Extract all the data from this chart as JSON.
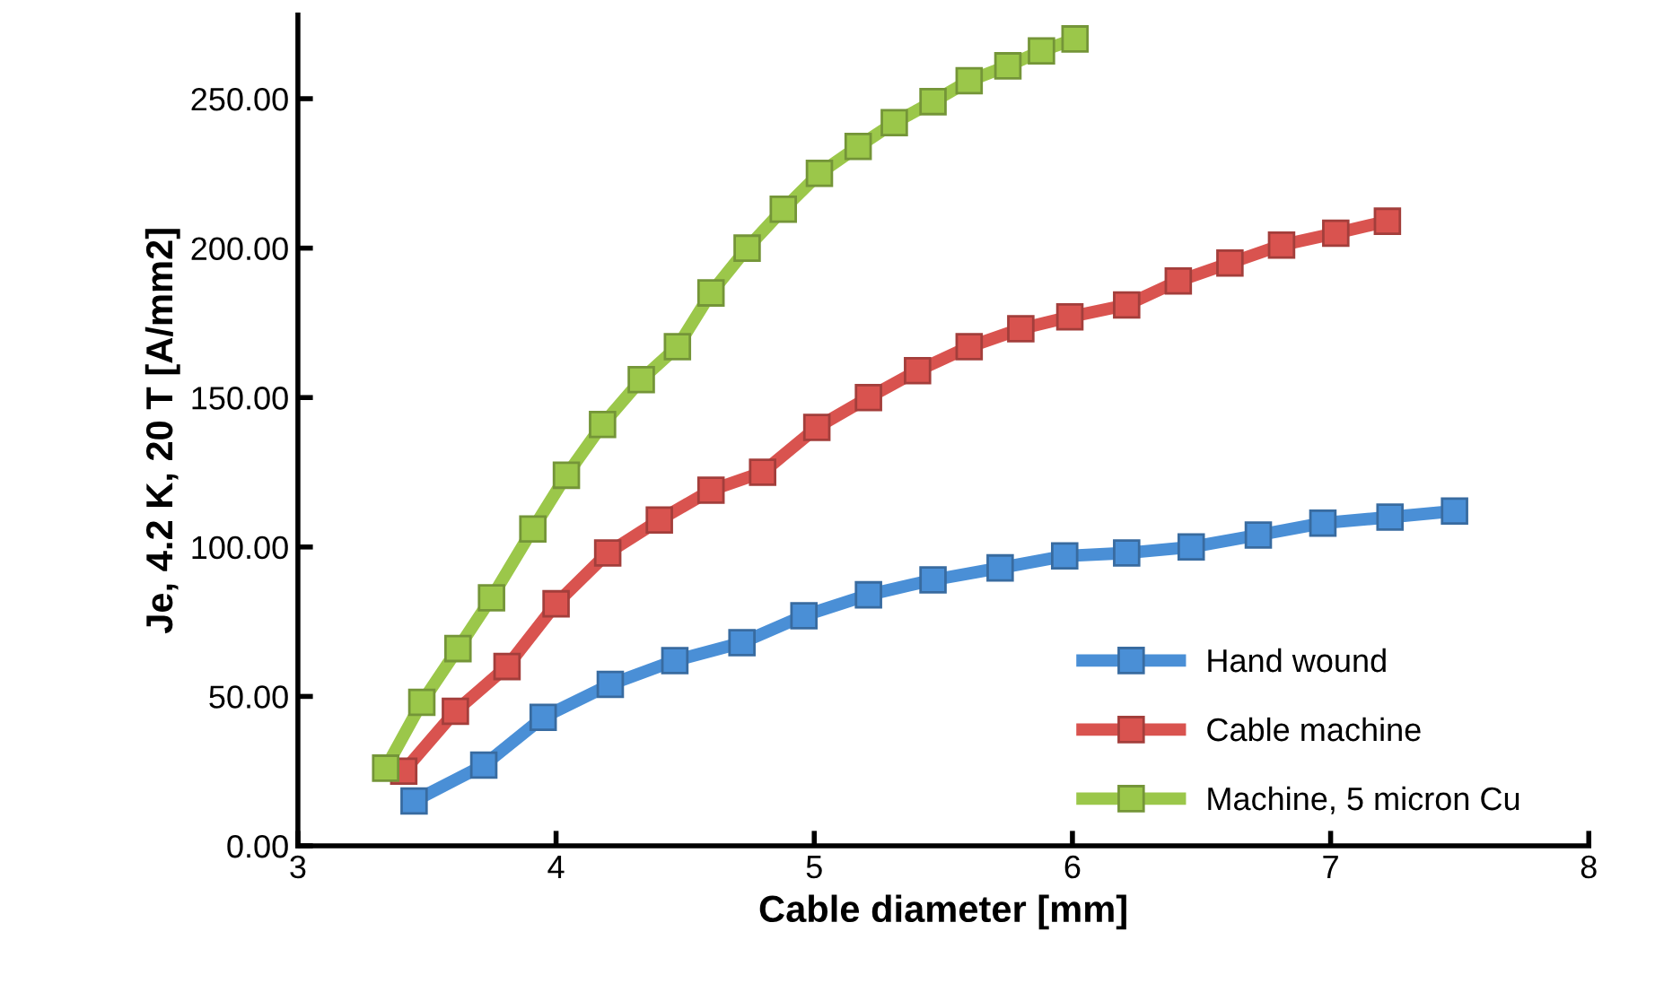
{
  "chart_data": {
    "type": "line",
    "xlabel": "Cable diameter [mm]",
    "ylabel": "Je, 4.2 K, 20 T [A/mm2]",
    "xlim": [
      3,
      8
    ],
    "xticks": [
      3,
      4,
      5,
      6,
      7,
      8
    ],
    "ylim": [
      0,
      278
    ],
    "yticks": [
      {
        "value": 0,
        "label": "0.00"
      },
      {
        "value": 50,
        "label": "50.00"
      },
      {
        "value": 100,
        "label": "100.00"
      },
      {
        "value": 150,
        "label": "150.00"
      },
      {
        "value": 200,
        "label": "200.00"
      },
      {
        "value": 250,
        "label": "250.00"
      }
    ],
    "grid": false,
    "legend": "lower right",
    "marker": "square",
    "line_style": "solid",
    "series": [
      {
        "name": "Hand wound",
        "color": "#4a8fd6",
        "x": [
          3.45,
          3.72,
          3.95,
          4.21,
          4.46,
          4.72,
          4.96,
          5.21,
          5.46,
          5.72,
          5.97,
          6.21,
          6.46,
          6.72,
          6.97,
          7.23,
          7.48
        ],
        "values": [
          15,
          27,
          43,
          54,
          62,
          68,
          77,
          84,
          89,
          93,
          97,
          98,
          100,
          104,
          108,
          110,
          112
        ]
      },
      {
        "name": "Cable machine",
        "color": "#d9534f",
        "x": [
          3.41,
          3.61,
          3.81,
          4.0,
          4.2,
          4.4,
          4.6,
          4.8,
          5.01,
          5.21,
          5.4,
          5.6,
          5.8,
          5.99,
          6.21,
          6.41,
          6.61,
          6.81,
          7.02,
          7.22
        ],
        "values": [
          25,
          45,
          60,
          81,
          98,
          109,
          119,
          125,
          140,
          150,
          159,
          167,
          173,
          177,
          181,
          189,
          195,
          201,
          205,
          209
        ]
      },
      {
        "name": "Machine, 5 micron Cu",
        "color": "#9bc74a",
        "x": [
          3.34,
          3.48,
          3.62,
          3.75,
          3.91,
          4.04,
          4.18,
          4.33,
          4.47,
          4.6,
          4.74,
          4.88,
          5.02,
          5.17,
          5.31,
          5.46,
          5.6,
          5.75,
          5.88,
          6.01
        ],
        "values": [
          26,
          48,
          66,
          83,
          106,
          124,
          141,
          156,
          167,
          185,
          200,
          213,
          225,
          234,
          242,
          249,
          256,
          261,
          266,
          270
        ]
      }
    ]
  }
}
